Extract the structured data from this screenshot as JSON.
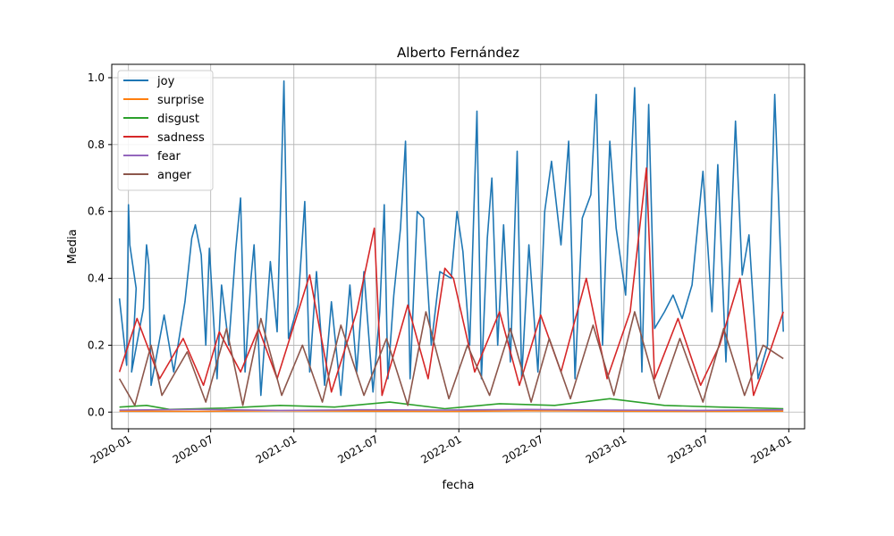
{
  "chart_data": {
    "type": "line",
    "title": "Alberto Fernández",
    "xlabel": "fecha",
    "ylabel": "Media",
    "xlim": [
      "2019-11-25",
      "2024-02-05"
    ],
    "ylim": [
      -0.05,
      1.04
    ],
    "x_ticks": [
      "2020-01",
      "2020-07",
      "2021-01",
      "2021-07",
      "2022-01",
      "2022-07",
      "2023-01",
      "2023-07",
      "2024-01"
    ],
    "x_tick_dates": [
      "2020-01-01",
      "2020-07-01",
      "2021-01-01",
      "2021-07-01",
      "2022-01-01",
      "2022-07-01",
      "2023-01-01",
      "2023-07-01",
      "2024-01-01"
    ],
    "y_ticks": [
      "0.0",
      "0.2",
      "0.4",
      "0.6",
      "0.8",
      "1.0"
    ],
    "y_tick_values": [
      0.0,
      0.2,
      0.4,
      0.6,
      0.8,
      1.0
    ],
    "grid": true,
    "legend_position": "upper-left",
    "series": [
      {
        "name": "joy",
        "color": "#1f77b4",
        "points": [
          [
            "2019-12-12",
            0.34
          ],
          [
            "2019-12-28",
            0.14
          ],
          [
            "2020-01-01",
            0.62
          ],
          [
            "2020-01-04",
            0.5
          ],
          [
            "2020-01-18",
            0.37
          ],
          [
            "2020-01-08",
            0.12
          ],
          [
            "2020-02-03",
            0.31
          ],
          [
            "2020-02-10",
            0.5
          ],
          [
            "2020-02-15",
            0.44
          ],
          [
            "2020-02-20",
            0.08
          ],
          [
            "2020-03-20",
            0.29
          ],
          [
            "2020-04-10",
            0.12
          ],
          [
            "2020-05-05",
            0.33
          ],
          [
            "2020-05-20",
            0.52
          ],
          [
            "2020-05-28",
            0.56
          ],
          [
            "2020-06-10",
            0.47
          ],
          [
            "2020-06-20",
            0.2
          ],
          [
            "2020-06-28",
            0.49
          ],
          [
            "2020-07-15",
            0.1
          ],
          [
            "2020-07-25",
            0.38
          ],
          [
            "2020-08-10",
            0.2
          ],
          [
            "2020-08-25",
            0.48
          ],
          [
            "2020-09-05",
            0.64
          ],
          [
            "2020-09-15",
            0.12
          ],
          [
            "2020-09-28",
            0.4
          ],
          [
            "2020-10-05",
            0.5
          ],
          [
            "2020-10-20",
            0.05
          ],
          [
            "2020-11-10",
            0.45
          ],
          [
            "2020-11-25",
            0.24
          ],
          [
            "2020-12-10",
            0.99
          ],
          [
            "2020-12-20",
            0.22
          ],
          [
            "2021-01-10",
            0.32
          ],
          [
            "2021-01-25",
            0.63
          ],
          [
            "2021-02-05",
            0.12
          ],
          [
            "2021-02-20",
            0.42
          ],
          [
            "2021-03-10",
            0.08
          ],
          [
            "2021-03-25",
            0.33
          ],
          [
            "2021-04-15",
            0.05
          ],
          [
            "2021-05-05",
            0.38
          ],
          [
            "2021-05-20",
            0.12
          ],
          [
            "2021-06-05",
            0.42
          ],
          [
            "2021-06-25",
            0.06
          ],
          [
            "2021-07-10",
            0.3
          ],
          [
            "2021-07-20",
            0.62
          ],
          [
            "2021-07-28",
            0.1
          ],
          [
            "2021-08-10",
            0.35
          ],
          [
            "2021-08-25",
            0.55
          ],
          [
            "2021-09-05",
            0.81
          ],
          [
            "2021-09-15",
            0.1
          ],
          [
            "2021-10-01",
            0.6
          ],
          [
            "2021-10-15",
            0.58
          ],
          [
            "2021-11-01",
            0.2
          ],
          [
            "2021-11-20",
            0.42
          ],
          [
            "2021-12-15",
            0.4
          ],
          [
            "2021-12-28",
            0.6
          ],
          [
            "2022-01-10",
            0.48
          ],
          [
            "2022-01-25",
            0.2
          ],
          [
            "2022-02-10",
            0.9
          ],
          [
            "2022-02-20",
            0.1
          ],
          [
            "2022-03-05",
            0.52
          ],
          [
            "2022-03-15",
            0.7
          ],
          [
            "2022-03-28",
            0.2
          ],
          [
            "2022-04-10",
            0.56
          ],
          [
            "2022-04-25",
            0.15
          ],
          [
            "2022-05-10",
            0.78
          ],
          [
            "2022-05-20",
            0.1
          ],
          [
            "2022-06-05",
            0.5
          ],
          [
            "2022-06-25",
            0.12
          ],
          [
            "2022-07-10",
            0.6
          ],
          [
            "2022-07-25",
            0.75
          ],
          [
            "2022-08-15",
            0.5
          ],
          [
            "2022-09-01",
            0.81
          ],
          [
            "2022-09-15",
            0.1
          ],
          [
            "2022-10-01",
            0.58
          ],
          [
            "2022-10-20",
            0.65
          ],
          [
            "2022-11-01",
            0.95
          ],
          [
            "2022-11-15",
            0.2
          ],
          [
            "2022-12-01",
            0.81
          ],
          [
            "2022-12-15",
            0.55
          ],
          [
            "2023-01-05",
            0.35
          ],
          [
            "2023-01-25",
            0.97
          ],
          [
            "2023-02-10",
            0.12
          ],
          [
            "2023-02-25",
            0.92
          ],
          [
            "2023-03-10",
            0.25
          ],
          [
            "2023-04-01",
            0.3
          ],
          [
            "2023-04-20",
            0.35
          ],
          [
            "2023-05-10",
            0.28
          ],
          [
            "2023-06-01",
            0.38
          ],
          [
            "2023-06-25",
            0.72
          ],
          [
            "2023-07-15",
            0.3
          ],
          [
            "2023-07-28",
            0.74
          ],
          [
            "2023-08-15",
            0.15
          ],
          [
            "2023-09-05",
            0.87
          ],
          [
            "2023-09-20",
            0.41
          ],
          [
            "2023-10-05",
            0.53
          ],
          [
            "2023-10-25",
            0.1
          ],
          [
            "2023-11-15",
            0.2
          ],
          [
            "2023-12-01",
            0.95
          ],
          [
            "2023-12-20",
            0.24
          ]
        ]
      },
      {
        "name": "surprise",
        "color": "#ff7f0e",
        "points": [
          [
            "2019-12-12",
            0.003
          ],
          [
            "2020-06-01",
            0.002
          ],
          [
            "2020-12-01",
            0.004
          ],
          [
            "2021-06-01",
            0.003
          ],
          [
            "2021-12-01",
            0.002
          ],
          [
            "2022-06-01",
            0.004
          ],
          [
            "2022-12-01",
            0.003
          ],
          [
            "2023-06-01",
            0.002
          ],
          [
            "2023-12-20",
            0.003
          ]
        ]
      },
      {
        "name": "disgust",
        "color": "#2ca02c",
        "points": [
          [
            "2019-12-12",
            0.015
          ],
          [
            "2020-02-10",
            0.02
          ],
          [
            "2020-04-01",
            0.008
          ],
          [
            "2020-08-01",
            0.012
          ],
          [
            "2020-12-01",
            0.02
          ],
          [
            "2021-04-01",
            0.015
          ],
          [
            "2021-08-01",
            0.03
          ],
          [
            "2021-12-01",
            0.01
          ],
          [
            "2022-04-01",
            0.025
          ],
          [
            "2022-08-01",
            0.02
          ],
          [
            "2022-12-01",
            0.04
          ],
          [
            "2023-04-01",
            0.02
          ],
          [
            "2023-08-01",
            0.015
          ],
          [
            "2023-12-20",
            0.01
          ]
        ]
      },
      {
        "name": "sadness",
        "color": "#d62728",
        "points": [
          [
            "2019-12-12",
            0.12
          ],
          [
            "2020-01-20",
            0.28
          ],
          [
            "2020-03-10",
            0.1
          ],
          [
            "2020-05-01",
            0.22
          ],
          [
            "2020-06-15",
            0.08
          ],
          [
            "2020-07-20",
            0.24
          ],
          [
            "2020-09-05",
            0.12
          ],
          [
            "2020-10-15",
            0.25
          ],
          [
            "2020-11-25",
            0.1
          ],
          [
            "2021-02-05",
            0.41
          ],
          [
            "2021-03-25",
            0.06
          ],
          [
            "2021-05-20",
            0.3
          ],
          [
            "2021-06-28",
            0.55
          ],
          [
            "2021-07-15",
            0.05
          ],
          [
            "2021-09-10",
            0.32
          ],
          [
            "2021-10-25",
            0.1
          ],
          [
            "2021-12-01",
            0.43
          ],
          [
            "2021-12-20",
            0.4
          ],
          [
            "2022-02-05",
            0.12
          ],
          [
            "2022-04-01",
            0.3
          ],
          [
            "2022-05-15",
            0.08
          ],
          [
            "2022-07-01",
            0.29
          ],
          [
            "2022-08-15",
            0.12
          ],
          [
            "2022-10-10",
            0.4
          ],
          [
            "2022-11-25",
            0.1
          ],
          [
            "2023-01-15",
            0.3
          ],
          [
            "2023-02-20",
            0.73
          ],
          [
            "2023-03-10",
            0.1
          ],
          [
            "2023-05-01",
            0.28
          ],
          [
            "2023-06-20",
            0.08
          ],
          [
            "2023-08-01",
            0.2
          ],
          [
            "2023-09-15",
            0.4
          ],
          [
            "2023-10-15",
            0.05
          ],
          [
            "2023-11-20",
            0.18
          ],
          [
            "2023-12-20",
            0.3
          ]
        ]
      },
      {
        "name": "fear",
        "color": "#9467bd",
        "points": [
          [
            "2019-12-12",
            0.006
          ],
          [
            "2020-06-01",
            0.008
          ],
          [
            "2020-12-01",
            0.005
          ],
          [
            "2021-06-01",
            0.007
          ],
          [
            "2021-12-01",
            0.006
          ],
          [
            "2022-06-01",
            0.008
          ],
          [
            "2022-12-01",
            0.006
          ],
          [
            "2023-06-01",
            0.005
          ],
          [
            "2023-12-20",
            0.007
          ]
        ]
      },
      {
        "name": "anger",
        "color": "#8c564b",
        "points": [
          [
            "2019-12-12",
            0.1
          ],
          [
            "2020-01-15",
            0.02
          ],
          [
            "2020-02-20",
            0.2
          ],
          [
            "2020-03-15",
            0.05
          ],
          [
            "2020-05-10",
            0.18
          ],
          [
            "2020-06-20",
            0.03
          ],
          [
            "2020-08-05",
            0.25
          ],
          [
            "2020-09-10",
            0.02
          ],
          [
            "2020-10-20",
            0.28
          ],
          [
            "2020-12-05",
            0.05
          ],
          [
            "2021-01-20",
            0.2
          ],
          [
            "2021-03-05",
            0.03
          ],
          [
            "2021-04-15",
            0.26
          ],
          [
            "2021-06-05",
            0.05
          ],
          [
            "2021-07-25",
            0.22
          ],
          [
            "2021-09-10",
            0.02
          ],
          [
            "2021-10-20",
            0.3
          ],
          [
            "2021-12-10",
            0.04
          ],
          [
            "2022-01-20",
            0.2
          ],
          [
            "2022-03-10",
            0.05
          ],
          [
            "2022-04-25",
            0.25
          ],
          [
            "2022-06-10",
            0.03
          ],
          [
            "2022-07-20",
            0.22
          ],
          [
            "2022-09-05",
            0.04
          ],
          [
            "2022-10-25",
            0.26
          ],
          [
            "2022-12-10",
            0.05
          ],
          [
            "2023-01-25",
            0.3
          ],
          [
            "2023-03-20",
            0.04
          ],
          [
            "2023-05-05",
            0.22
          ],
          [
            "2023-06-25",
            0.03
          ],
          [
            "2023-08-10",
            0.25
          ],
          [
            "2023-09-25",
            0.05
          ],
          [
            "2023-11-05",
            0.2
          ],
          [
            "2023-12-20",
            0.16
          ]
        ]
      }
    ]
  }
}
